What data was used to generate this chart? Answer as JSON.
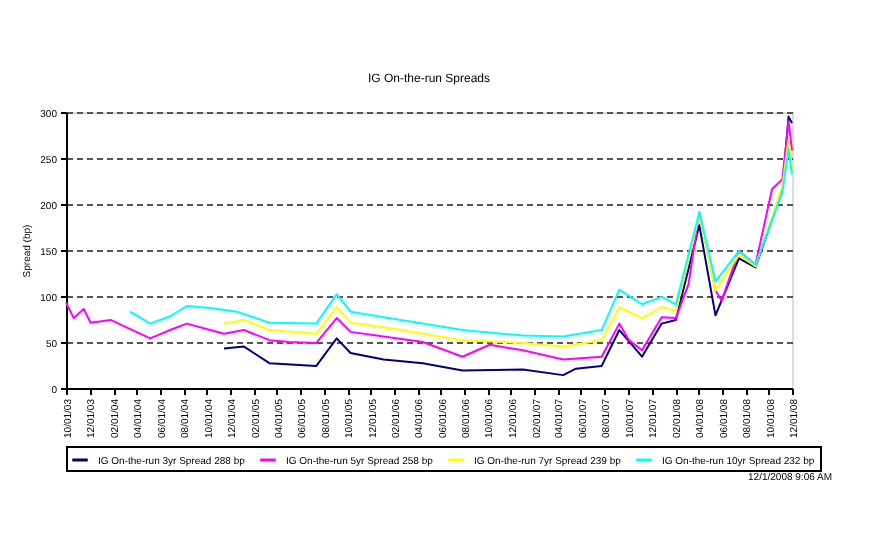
{
  "chart_data": {
    "type": "line",
    "title": "IG On-the-run Spreads",
    "ylabel": "Spread (bp)",
    "xlim": [
      "2003-10-01",
      "2008-12-01"
    ],
    "xticks": [
      {
        "value": "2003-10-01",
        "label": "10/01/03"
      },
      {
        "value": "2003-12-01",
        "label": "12/01/03"
      },
      {
        "value": "2004-02-01",
        "label": "02/01/04"
      },
      {
        "value": "2004-04-01",
        "label": "04/01/04"
      },
      {
        "value": "2004-06-01",
        "label": "06/01/04"
      },
      {
        "value": "2004-08-01",
        "label": "08/01/04"
      },
      {
        "value": "2004-10-01",
        "label": "10/01/04"
      },
      {
        "value": "2004-12-01",
        "label": "12/01/04"
      },
      {
        "value": "2005-02-01",
        "label": "02/01/05"
      },
      {
        "value": "2005-04-01",
        "label": "04/01/05"
      },
      {
        "value": "2005-06-01",
        "label": "06/01/05"
      },
      {
        "value": "2005-08-01",
        "label": "08/01/05"
      },
      {
        "value": "2005-10-01",
        "label": "10/01/05"
      },
      {
        "value": "2005-12-01",
        "label": "12/01/05"
      },
      {
        "value": "2006-02-01",
        "label": "02/01/06"
      },
      {
        "value": "2006-04-01",
        "label": "04/01/06"
      },
      {
        "value": "2006-06-01",
        "label": "06/01/06"
      },
      {
        "value": "2006-08-01",
        "label": "08/01/06"
      },
      {
        "value": "2006-10-01",
        "label": "10/01/06"
      },
      {
        "value": "2006-12-01",
        "label": "12/01/06"
      },
      {
        "value": "2007-02-01",
        "label": "02/01/07"
      },
      {
        "value": "2007-04-01",
        "label": "04/01/07"
      },
      {
        "value": "2007-06-01",
        "label": "06/01/07"
      },
      {
        "value": "2007-08-01",
        "label": "08/01/07"
      },
      {
        "value": "2007-10-01",
        "label": "10/01/07"
      },
      {
        "value": "2007-12-01",
        "label": "12/01/07"
      },
      {
        "value": "2008-02-01",
        "label": "02/01/08"
      },
      {
        "value": "2008-04-01",
        "label": "04/01/08"
      },
      {
        "value": "2008-06-01",
        "label": "06/01/08"
      },
      {
        "value": "2008-08-01",
        "label": "08/01/08"
      },
      {
        "value": "2008-10-01",
        "label": "10/01/08"
      },
      {
        "value": "2008-12-01",
        "label": "12/01/08"
      }
    ],
    "ylim": [
      0,
      300
    ],
    "yticks": [
      0,
      50,
      100,
      150,
      200,
      250,
      300
    ],
    "grid": "y",
    "legend": "bottom",
    "line_style": "solid",
    "marker": "none",
    "annotations": [
      "12/1/2008  9:06 AM"
    ],
    "series": [
      {
        "name": "IG On-the-run 3yr Spread 288 bp",
        "color": "#000080",
        "x": [
          "2004-11-15",
          "2005-01-06",
          "2005-03-13",
          "2005-07-13",
          "2005-09-04",
          "2005-10-10",
          "2006-01-04",
          "2006-04-16",
          "2006-07-28",
          "2007-01-01",
          "2007-04-16",
          "2007-05-19",
          "2007-07-25",
          "2007-09-09",
          "2007-11-07",
          "2007-12-28",
          "2008-02-03",
          "2008-04-04",
          "2008-05-16",
          "2008-07-16",
          "2008-08-28",
          "2008-11-06",
          "2008-11-22",
          "2008-12-01"
        ],
        "values": [
          43,
          45,
          27,
          24,
          54,
          38,
          31,
          27,
          19,
          20,
          14,
          21,
          24,
          63,
          34,
          70,
          74,
          177,
          79,
          141,
          131,
          216,
          295,
          288
        ]
      },
      {
        "name": "IG On-the-run 5yr Spread 258 bp",
        "color": "#ff00ff",
        "x": [
          "2003-10-01",
          "2003-10-21",
          "2003-11-16",
          "2003-12-04",
          "2004-01-25",
          "2004-03-16",
          "2004-05-07",
          "2004-06-28",
          "2004-08-10",
          "2004-10-10",
          "2004-11-15",
          "2005-01-06",
          "2005-03-13",
          "2005-05-04",
          "2005-07-13",
          "2005-09-04",
          "2005-10-10",
          "2006-01-04",
          "2006-04-16",
          "2006-07-28",
          "2006-10-07",
          "2007-01-01",
          "2007-04-16",
          "2007-07-25",
          "2007-09-09",
          "2007-10-04",
          "2007-11-07",
          "2007-12-28",
          "2008-02-03",
          "2008-03-07",
          "2008-04-04",
          "2008-05-16",
          "2008-06-01",
          "2008-07-16",
          "2008-08-28",
          "2008-10-10",
          "2008-11-06",
          "2008-11-22",
          "2008-12-01"
        ],
        "values": [
          93,
          76,
          86,
          71,
          74,
          64,
          54,
          63,
          70,
          63,
          59,
          63,
          52,
          50,
          49,
          76,
          61,
          56,
          50,
          34,
          47,
          41,
          31,
          34,
          70,
          52,
          41,
          77,
          76,
          113,
          191,
          106,
          95,
          149,
          134,
          216,
          227,
          290,
          258
        ]
      },
      {
        "name": "IG On-the-run 7yr Spread 239 bp",
        "color": "#ffff00",
        "x": [
          "2004-11-15",
          "2005-01-06",
          "2005-03-13",
          "2005-07-13",
          "2005-09-04",
          "2005-10-10",
          "2006-01-04",
          "2006-04-16",
          "2006-07-28",
          "2007-01-01",
          "2007-04-16",
          "2007-07-25",
          "2007-09-09",
          "2007-11-07",
          "2007-12-28",
          "2008-02-03",
          "2008-04-04",
          "2008-05-16",
          "2008-07-16",
          "2008-08-28",
          "2008-11-06",
          "2008-11-22",
          "2008-12-01"
        ],
        "values": [
          70,
          74,
          63,
          59,
          88,
          71,
          66,
          59,
          52,
          49,
          45,
          52,
          88,
          76,
          88,
          84,
          188,
          106,
          145,
          132,
          220,
          270,
          239
        ]
      },
      {
        "name": "IG On-the-run 10yr Spread 232 bp",
        "color": "#00ffff",
        "x": [
          "2004-03-16",
          "2004-05-07",
          "2004-06-28",
          "2004-08-10",
          "2004-10-10",
          "2004-12-18",
          "2005-03-13",
          "2005-07-13",
          "2005-09-04",
          "2005-10-10",
          "2006-01-04",
          "2006-04-16",
          "2006-07-28",
          "2007-01-01",
          "2007-04-16",
          "2007-07-25",
          "2007-09-09",
          "2007-11-07",
          "2007-12-28",
          "2008-02-03",
          "2008-04-04",
          "2008-05-16",
          "2008-07-16",
          "2008-08-28",
          "2008-11-06",
          "2008-11-22",
          "2008-12-01"
        ],
        "values": [
          83,
          70,
          78,
          89,
          87,
          83,
          71,
          70,
          102,
          83,
          77,
          70,
          63,
          57,
          56,
          63,
          107,
          91,
          99,
          91,
          191,
          116,
          149,
          134,
          213,
          260,
          232
        ]
      }
    ]
  }
}
